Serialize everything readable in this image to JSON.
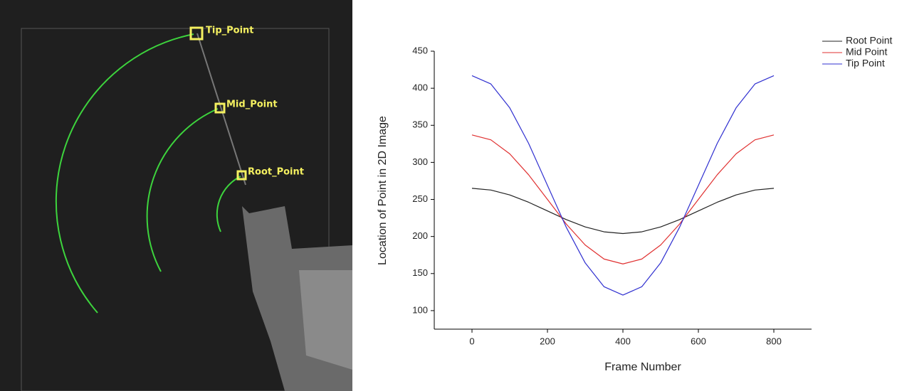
{
  "image_annotations": {
    "tip": "Tip_Point",
    "mid": "Mid_Point",
    "root": "Root_Point"
  },
  "chart_data": {
    "type": "line",
    "x_label": "Frame Number",
    "y_label": "Location of Point in 2D Image",
    "x": [
      0,
      50,
      100,
      150,
      200,
      250,
      300,
      350,
      400,
      450,
      500,
      550,
      600,
      650,
      700,
      750,
      800
    ],
    "series": [
      {
        "name": "Root Point",
        "color": "#222222",
        "values": [
          265,
          262.7,
          256.1,
          246.2,
          234.5,
          222.8,
          212.9,
          206.3,
          204,
          206.3,
          212.9,
          222.8,
          234.5,
          246.2,
          256.1,
          262.7,
          265
        ]
      },
      {
        "name": "Mid Point",
        "color": "#e03030",
        "values": [
          337,
          330.4,
          311.5,
          283.3,
          250,
          216.7,
          188.5,
          169.6,
          163,
          169.6,
          188.5,
          216.7,
          250,
          283.3,
          311.5,
          330.4,
          337
        ]
      },
      {
        "name": "Tip Point",
        "color": "#3030d0",
        "values": [
          417,
          405.8,
          373.6,
          325.7,
          269,
          212.3,
          164.4,
          132.2,
          121,
          132.2,
          164.4,
          212.3,
          269,
          325.7,
          373.6,
          405.8,
          417
        ]
      }
    ],
    "xlim": [
      -100,
      900
    ],
    "ylim": [
      75,
      450
    ],
    "xticks": [
      0,
      200,
      400,
      600,
      800
    ],
    "yticks": [
      100,
      150,
      200,
      250,
      300,
      350,
      400,
      450
    ],
    "legend": "top-right"
  }
}
